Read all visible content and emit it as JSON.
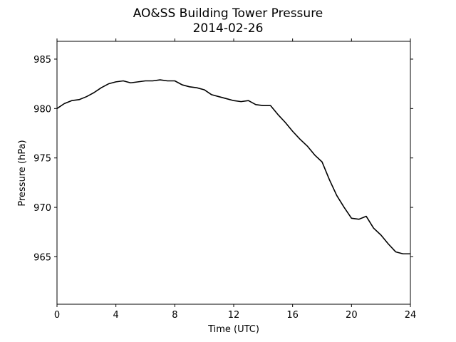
{
  "chart_data": {
    "type": "line",
    "title": "AO&SS Building Tower Pressure",
    "subtitle": "2014-02-26",
    "xlabel": "Time (UTC)",
    "ylabel": "Pressure (hPa)",
    "xlim": [
      0,
      24
    ],
    "ylim": [
      960.2,
      986.8
    ],
    "x_ticks": [
      0,
      4,
      8,
      12,
      16,
      20,
      24
    ],
    "y_ticks": [
      965,
      970,
      975,
      980,
      985
    ],
    "grid": false,
    "line_color": "#000000",
    "series": [
      {
        "x": [
          0,
          0.5,
          1,
          1.5,
          2,
          2.5,
          3,
          3.5,
          4,
          4.5,
          5,
          5.5,
          6,
          6.5,
          7,
          7.5,
          8,
          8.5,
          9,
          9.5,
          10,
          10.5,
          11,
          11.5,
          12,
          12.5,
          13,
          13.5,
          14,
          14.5,
          15,
          15.5,
          16,
          16.5,
          17,
          17.5,
          18,
          18.5,
          19,
          19.5,
          20,
          20.5,
          21,
          21.5,
          22,
          22.5,
          23,
          23.5,
          24
        ],
        "values": [
          980.0,
          980.5,
          980.8,
          980.9,
          981.2,
          981.6,
          982.1,
          982.5,
          982.7,
          982.8,
          982.6,
          982.7,
          982.8,
          982.8,
          982.9,
          982.8,
          982.8,
          982.4,
          982.2,
          982.1,
          981.9,
          981.4,
          981.2,
          981.0,
          980.8,
          980.7,
          980.8,
          980.4,
          980.3,
          980.3,
          979.4,
          978.6,
          977.7,
          976.9,
          976.2,
          975.3,
          974.6,
          972.8,
          971.2,
          970.0,
          968.9,
          968.8,
          969.1,
          967.9,
          967.2,
          966.3,
          965.5,
          965.3,
          965.3
        ]
      }
    ]
  }
}
